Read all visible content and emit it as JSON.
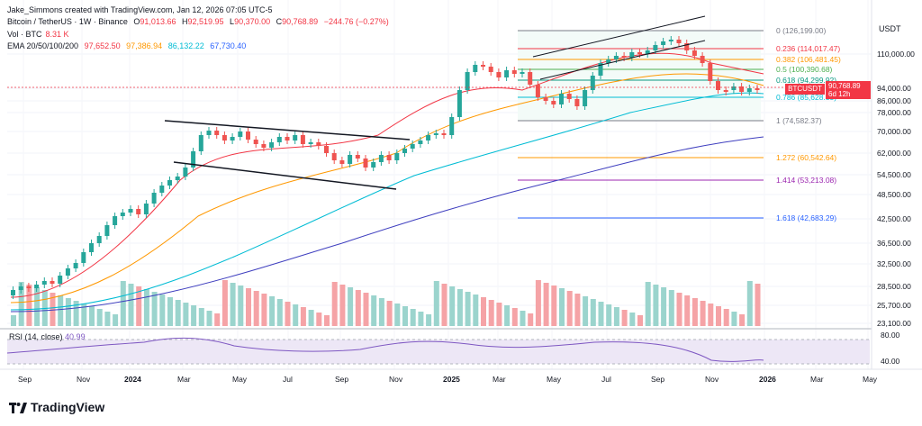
{
  "header": {
    "credit": "Jake_Simmons created with TradingView.com, Jan 12, 2026 07:05 UTC-5",
    "symbol": "Bitcoin / TetherUS · 1W · Binance",
    "o_label": "O",
    "o_value": "91,013.66",
    "h_label": "H",
    "h_value": "92,519.95",
    "l_label": "L",
    "l_value": "90,370.00",
    "c_label": "C",
    "c_value": "90,768.89",
    "change": "−244.76 (−0.27%)",
    "vol_label": "Vol · BTC",
    "vol_value": "8.31 K",
    "ema_label": "EMA 20/50/100/200",
    "ema20": "97,652.50",
    "ema50": "97,386.94",
    "ema100": "86,132.22",
    "ema200": "67,730.40"
  },
  "currency": "USDT",
  "price_tag": {
    "symbol": "BTCUSDT",
    "price": "90,768.89",
    "countdown": "6d 12h"
  },
  "price_axis": [
    "110,000.00",
    "94,000.00",
    "86,000.00",
    "78,000.00",
    "70,000.00",
    "62,000.00",
    "54,500.00",
    "48,500.00",
    "42,500.00",
    "36,500.00",
    "32,500.00",
    "28,500.00",
    "25,700.00",
    "23,100.00"
  ],
  "rsi": {
    "label": "RSI (14, close)",
    "value": "40.99",
    "levels": [
      "80.00",
      "40.00"
    ]
  },
  "time_axis": [
    "Sep",
    "Nov",
    "2024",
    "Mar",
    "May",
    "Jul",
    "Sep",
    "Nov",
    "2025",
    "Mar",
    "May",
    "Jul",
    "Sep",
    "Nov",
    "2026",
    "Mar",
    "May"
  ],
  "fib": [
    {
      "label": "0 (126,199.00)",
      "color": "#787b86"
    },
    {
      "label": "0.236 (114,017.47)",
      "color": "#f23645"
    },
    {
      "label": "0.382 (106,481.45)",
      "color": "#ff9800"
    },
    {
      "label": "0.5 (100,390.68)",
      "color": "#4caf50"
    },
    {
      "label": "0.618 (94,299.92)",
      "color": "#089981"
    },
    {
      "label": "0.786 (85,628.33)",
      "color": "#00bcd4"
    },
    {
      "label": "1 (74,582.37)",
      "color": "#787b86"
    },
    {
      "label": "1.272 (60,542.64)",
      "color": "#ff9800"
    },
    {
      "label": "1.414 (53,213.08)",
      "color": "#9c27b0"
    },
    {
      "label": "1.618 (42,683.29)",
      "color": "#2962ff"
    }
  ],
  "colors": {
    "up": "#26a69a",
    "down": "#ef5350",
    "ema20": "#f23645",
    "ema50": "#ff9800",
    "ema100": "#00bcd4",
    "ema200": "#3f3fbf"
  },
  "brand": "TradingView"
}
